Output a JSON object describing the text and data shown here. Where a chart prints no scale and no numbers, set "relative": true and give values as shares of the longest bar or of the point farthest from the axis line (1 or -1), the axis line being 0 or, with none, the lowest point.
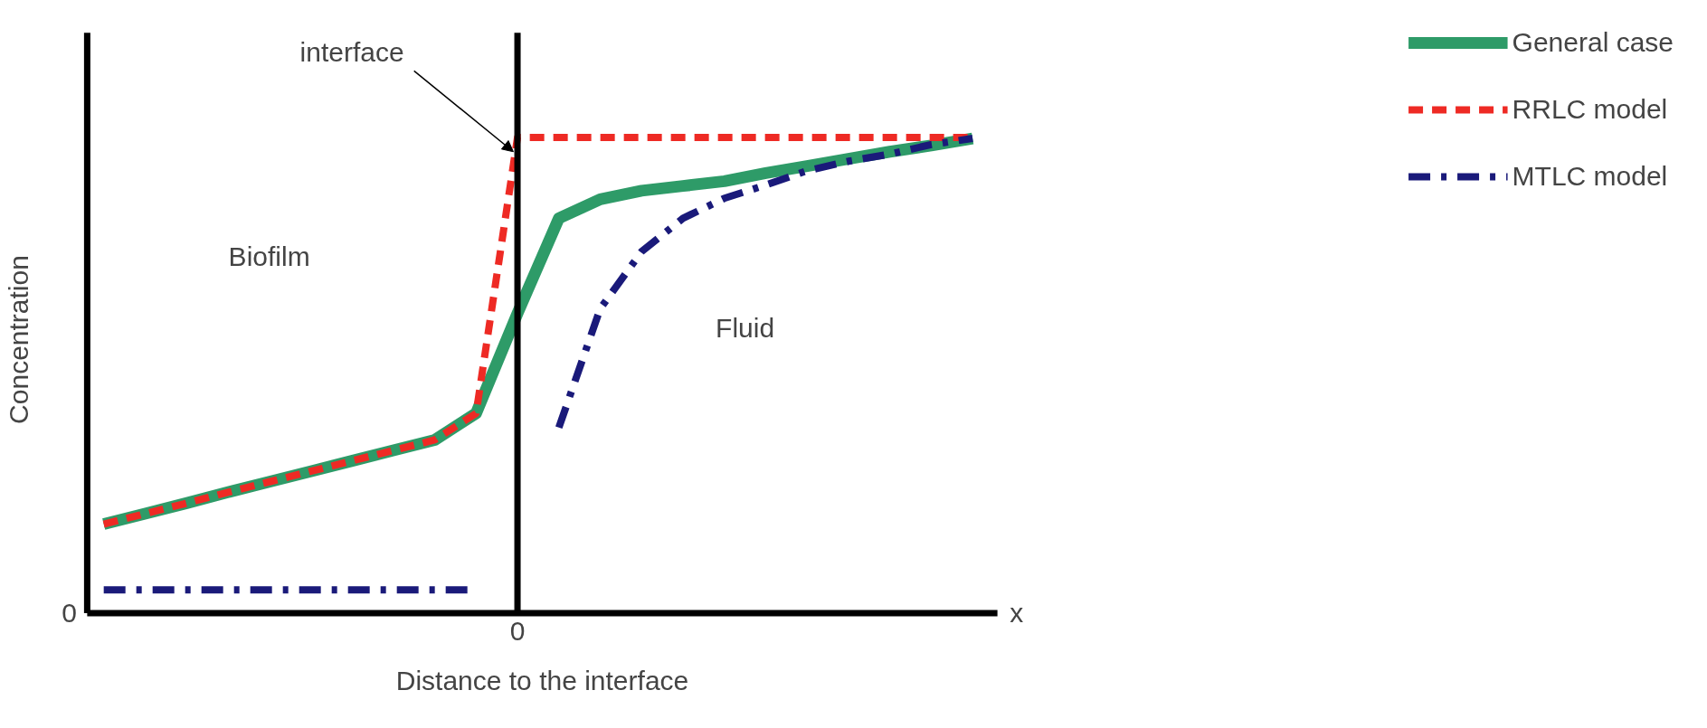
{
  "chart_data": {
    "type": "line",
    "relative": true,
    "xlabel": "Distance to the interface",
    "ylabel": "Concentration",
    "categories": [
      null,
      null,
      null,
      null,
      null,
      null,
      null,
      null,
      null,
      null,
      null,
      null,
      null,
      null,
      null,
      null,
      null,
      null,
      null,
      null,
      null,
      null
    ],
    "legend": "right",
    "series": [
      {
        "name": "General case",
        "color": "#2e9b68",
        "line_style": "solid",
        "values": [
          0.187,
          0.209,
          0.231,
          0.254,
          0.276,
          0.298,
          0.32,
          0.342,
          0.364,
          0.42,
          0.63,
          0.83,
          0.87,
          0.888,
          0.898,
          0.908,
          0.925,
          0.94,
          0.955,
          0.97,
          0.983,
          0.998
        ]
      },
      {
        "name": "RRLC model",
        "color": "#ee2a24",
        "line_style": "dashed",
        "values": [
          0.187,
          0.209,
          0.231,
          0.254,
          0.276,
          0.298,
          0.32,
          0.342,
          0.364,
          0.42,
          1.0,
          1.0,
          1.0,
          1.0,
          1.0,
          1.0,
          1.0,
          1.0,
          1.0,
          1.0,
          1.0,
          1.0
        ]
      },
      {
        "name": "MTLC model",
        "color": "#1a1a7a",
        "line_style": "dashdot",
        "values": [
          0.049,
          0.049,
          0.049,
          0.049,
          0.049,
          0.049,
          0.049,
          0.049,
          0.049,
          0.049,
          null,
          0.39,
          0.64,
          0.76,
          0.83,
          0.872,
          0.9,
          0.93,
          0.95,
          0.965,
          0.985,
          0.998
        ]
      }
    ],
    "annotations": [
      "interface",
      "Biofilm",
      "Fluid",
      "0",
      "0",
      "x"
    ]
  }
}
